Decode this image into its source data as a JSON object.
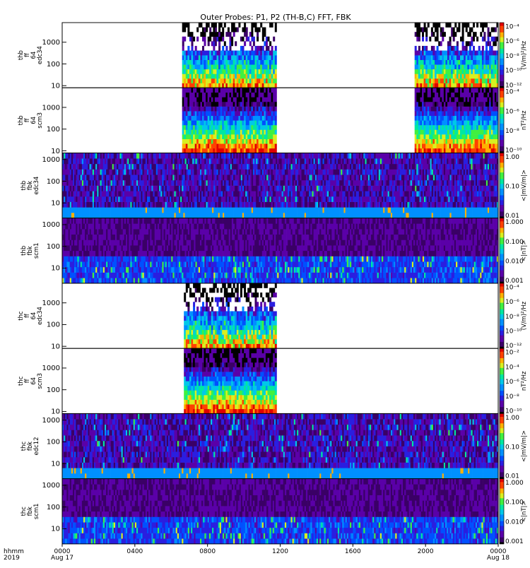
{
  "figure": {
    "title": "Outer Probes: P1, P2 (TH-B,C) FFT, FBK",
    "time_label": "hhmm",
    "year_label": "2019",
    "time_ticks": [
      "0000",
      "0400",
      "0800",
      "1200",
      "1600",
      "2000",
      "0000"
    ],
    "date_start": "Aug 17",
    "date_end": "Aug 18"
  },
  "chart_data": [
    {
      "type": "heatmap",
      "panel": "thb ff 64 edc34",
      "ylabel": [
        "thb",
        "ff",
        "64",
        "edc34"
      ],
      "yscale": "log",
      "yticks": [
        "10",
        "100",
        "1000"
      ],
      "ylim": [
        8,
        8000
      ],
      "xlim": [
        0,
        24
      ],
      "colorbar": {
        "label": "(V/m)²/Hz",
        "ticks": [
          "10⁻⁴",
          "10⁻⁶",
          "10⁻⁸",
          "10⁻¹⁰",
          "10⁻¹²"
        ]
      },
      "active_intervals": [
        [
          6.6,
          11.8
        ],
        [
          19.4,
          24.0
        ]
      ]
    },
    {
      "type": "heatmap",
      "panel": "thb ff 64 scm3",
      "ylabel": [
        "thb",
        "ff",
        "64",
        "scm3"
      ],
      "yscale": "log",
      "yticks": [
        "10",
        "100",
        "1000"
      ],
      "ylim": [
        8,
        8000
      ],
      "xlim": [
        0,
        24
      ],
      "colorbar": {
        "label": "nT²/Hz",
        "ticks": [
          "10⁻⁴",
          "10⁻⁶",
          "10⁻⁸",
          "10⁻¹⁰"
        ]
      },
      "active_intervals": [
        [
          6.6,
          11.8
        ],
        [
          19.4,
          24.0
        ]
      ]
    },
    {
      "type": "heatmap",
      "panel": "thb fbk edc34",
      "ylabel": [
        "thb",
        "fbk",
        "edc34"
      ],
      "yscale": "log",
      "yticks": [
        "10",
        "100",
        "1000"
      ],
      "ylim": [
        2,
        2000
      ],
      "xlim": [
        0,
        24
      ],
      "colorbar": {
        "label": "<|mV/m|>",
        "ticks": [
          "1.00",
          "0.10",
          "0.01"
        ]
      },
      "active_intervals": [
        [
          0,
          24
        ]
      ]
    },
    {
      "type": "heatmap",
      "panel": "thb fbk scm1",
      "ylabel": [
        "thb",
        "fbk",
        "scm1"
      ],
      "yscale": "log",
      "yticks": [
        "10",
        "100",
        "1000"
      ],
      "ylim": [
        2,
        2000
      ],
      "xlim": [
        0,
        24
      ],
      "colorbar": {
        "label": "<|nT|>",
        "ticks": [
          "1.000",
          "0.100",
          "0.010",
          "0.001"
        ]
      },
      "active_intervals": [
        [
          0,
          24
        ]
      ]
    },
    {
      "type": "heatmap",
      "panel": "thc ff 64 edc34",
      "ylabel": [
        "thc",
        "ff",
        "64",
        "edc34"
      ],
      "yscale": "log",
      "yticks": [
        "10",
        "100",
        "1000"
      ],
      "ylim": [
        8,
        8000
      ],
      "xlim": [
        0,
        24
      ],
      "colorbar": {
        "label": "(V/m)²/Hz",
        "ticks": [
          "10⁻⁴",
          "10⁻⁶",
          "10⁻⁸",
          "10⁻¹⁰",
          "10⁻¹²"
        ]
      },
      "active_intervals": [
        [
          6.7,
          11.8
        ]
      ]
    },
    {
      "type": "heatmap",
      "panel": "thc ff 64 scm3",
      "ylabel": [
        "thc",
        "ff",
        "64",
        "scm3"
      ],
      "yscale": "log",
      "yticks": [
        "10",
        "100",
        "1000"
      ],
      "ylim": [
        8,
        8000
      ],
      "xlim": [
        0,
        24
      ],
      "colorbar": {
        "label": "nT²/Hz",
        "ticks": [
          "10⁻²",
          "10⁻⁴",
          "10⁻⁶",
          "10⁻⁸",
          "10⁻¹⁰"
        ]
      },
      "active_intervals": [
        [
          6.7,
          11.8
        ]
      ]
    },
    {
      "type": "heatmap",
      "panel": "thc fbk edc12",
      "ylabel": [
        "thc",
        "fbk",
        "edc12"
      ],
      "yscale": "log",
      "yticks": [
        "10",
        "100",
        "1000"
      ],
      "ylim": [
        2,
        2000
      ],
      "xlim": [
        0,
        24
      ],
      "colorbar": {
        "label": "<|mV/m|>",
        "ticks": [
          "1.00",
          "0.10",
          "0.01"
        ]
      },
      "active_intervals": [
        [
          0,
          24
        ]
      ]
    },
    {
      "type": "heatmap",
      "panel": "thc fbk scm1",
      "ylabel": [
        "thc",
        "fbk",
        "scm1"
      ],
      "yscale": "log",
      "yticks": [
        "10",
        "100",
        "1000"
      ],
      "ylim": [
        2,
        2000
      ],
      "xlim": [
        0,
        24
      ],
      "colorbar": {
        "label": "<|nT|>",
        "ticks": [
          "1.000",
          "0.100",
          "0.010",
          "0.001"
        ]
      },
      "active_intervals": [
        [
          0,
          24
        ]
      ]
    }
  ]
}
